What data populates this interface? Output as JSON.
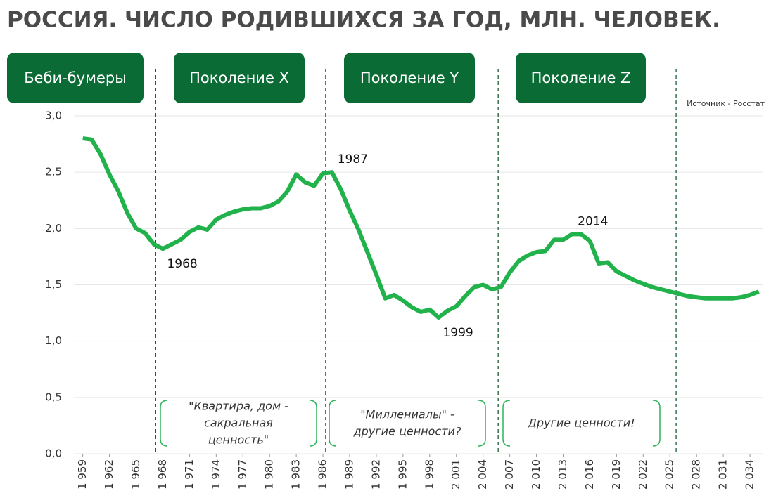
{
  "chart_data": {
    "type": "line",
    "title": "РОССИЯ. ЧИСЛО РОДИВШИХСЯ ЗА ГОД, МЛН. ЧЕЛОВЕК.",
    "source": "Источник - Росстат",
    "x": [
      1959,
      1960,
      1961,
      1962,
      1963,
      1964,
      1965,
      1966,
      1967,
      1968,
      1969,
      1970,
      1971,
      1972,
      1973,
      1974,
      1975,
      1976,
      1977,
      1978,
      1979,
      1980,
      1981,
      1982,
      1983,
      1984,
      1985,
      1986,
      1987,
      1988,
      1989,
      1990,
      1991,
      1992,
      1993,
      1994,
      1995,
      1996,
      1997,
      1998,
      1999,
      2000,
      2001,
      2002,
      2003,
      2004,
      2005,
      2006,
      2007,
      2008,
      2009,
      2010,
      2011,
      2012,
      2013,
      2014,
      2015,
      2016,
      2017,
      2018,
      2019,
      2020,
      2021,
      2022,
      2023,
      2024,
      2025,
      2026,
      2027,
      2028,
      2029,
      2030,
      2031,
      2032,
      2033,
      2034,
      2035
    ],
    "series": [
      {
        "color": "#22b24c",
        "values": [
          2.8,
          2.79,
          2.66,
          2.48,
          2.33,
          2.14,
          2.0,
          1.96,
          1.86,
          1.82,
          1.86,
          1.9,
          1.97,
          2.01,
          1.99,
          2.08,
          2.12,
          2.15,
          2.17,
          2.18,
          2.18,
          2.2,
          2.24,
          2.33,
          2.48,
          2.41,
          2.38,
          2.49,
          2.5,
          2.35,
          2.16,
          1.99,
          1.79,
          1.59,
          1.38,
          1.41,
          1.36,
          1.3,
          1.26,
          1.28,
          1.21,
          1.27,
          1.31,
          1.4,
          1.48,
          1.5,
          1.46,
          1.48,
          1.61,
          1.71,
          1.76,
          1.79,
          1.8,
          1.9,
          1.9,
          1.95,
          1.95,
          1.89,
          1.69,
          1.7,
          1.62,
          1.58,
          1.54,
          1.51,
          1.48,
          1.46,
          1.44,
          1.42,
          1.4,
          1.39,
          1.38,
          1.38,
          1.38,
          1.38,
          1.39,
          1.41,
          1.44
        ]
      }
    ],
    "xlim": [
      1958,
      2035.5
    ],
    "xticks": [
      {
        "value": 1959,
        "label": "1 959"
      },
      {
        "value": 1962,
        "label": "1 962"
      },
      {
        "value": 1965,
        "label": "1 965"
      },
      {
        "value": 1968,
        "label": "1 968"
      },
      {
        "value": 1971,
        "label": "1 971"
      },
      {
        "value": 1974,
        "label": "1 974"
      },
      {
        "value": 1977,
        "label": "1 977"
      },
      {
        "value": 1980,
        "label": "1 980"
      },
      {
        "value": 1983,
        "label": "1 983"
      },
      {
        "value": 1986,
        "label": "1 986"
      },
      {
        "value": 1989,
        "label": "1 989"
      },
      {
        "value": 1992,
        "label": "1 992"
      },
      {
        "value": 1995,
        "label": "1 995"
      },
      {
        "value": 1998,
        "label": "1 998"
      },
      {
        "value": 2001,
        "label": "2 001"
      },
      {
        "value": 2004,
        "label": "2 004"
      },
      {
        "value": 2007,
        "label": "2 007"
      },
      {
        "value": 2010,
        "label": "2 010"
      },
      {
        "value": 2013,
        "label": "2 013"
      },
      {
        "value": 2016,
        "label": "2 016"
      },
      {
        "value": 2019,
        "label": "2 019"
      },
      {
        "value": 2022,
        "label": "2 022"
      },
      {
        "value": 2025,
        "label": "2 025"
      },
      {
        "value": 2028,
        "label": "2 028"
      },
      {
        "value": 2031,
        "label": "2 031"
      },
      {
        "value": 2034,
        "label": "2 034"
      }
    ],
    "ylim": [
      0,
      3
    ],
    "yticks": [
      {
        "value": 0,
        "label": "0,0"
      },
      {
        "value": 0.5,
        "label": "0,5"
      },
      {
        "value": 1,
        "label": "1,0"
      },
      {
        "value": 1.5,
        "label": "1,5"
      },
      {
        "value": 2,
        "label": "2,0"
      },
      {
        "value": 2.5,
        "label": "2,5"
      },
      {
        "value": 3,
        "label": "3,0"
      }
    ],
    "grid": true,
    "dividers": [
      1967.2,
      1986.3,
      2005.7,
      2025.7
    ],
    "annotations": [
      {
        "x": 1968,
        "label": "1968"
      },
      {
        "x": 1987,
        "label": "1987"
      },
      {
        "x": 1999,
        "label": "1999"
      },
      {
        "x": 2014,
        "label": "2014"
      }
    ],
    "generations": [
      {
        "name": "Беби-бумеры"
      },
      {
        "name": "Поколение X",
        "note": [
          "\"Квартира, дом -",
          "сакральная",
          "ценность\""
        ]
      },
      {
        "name": "Поколение Y",
        "note": [
          "\"Миллениалы\" -",
          "другие ценности?"
        ]
      },
      {
        "name": "Поколение Z",
        "note": [
          "Другие ценности!"
        ]
      }
    ]
  }
}
